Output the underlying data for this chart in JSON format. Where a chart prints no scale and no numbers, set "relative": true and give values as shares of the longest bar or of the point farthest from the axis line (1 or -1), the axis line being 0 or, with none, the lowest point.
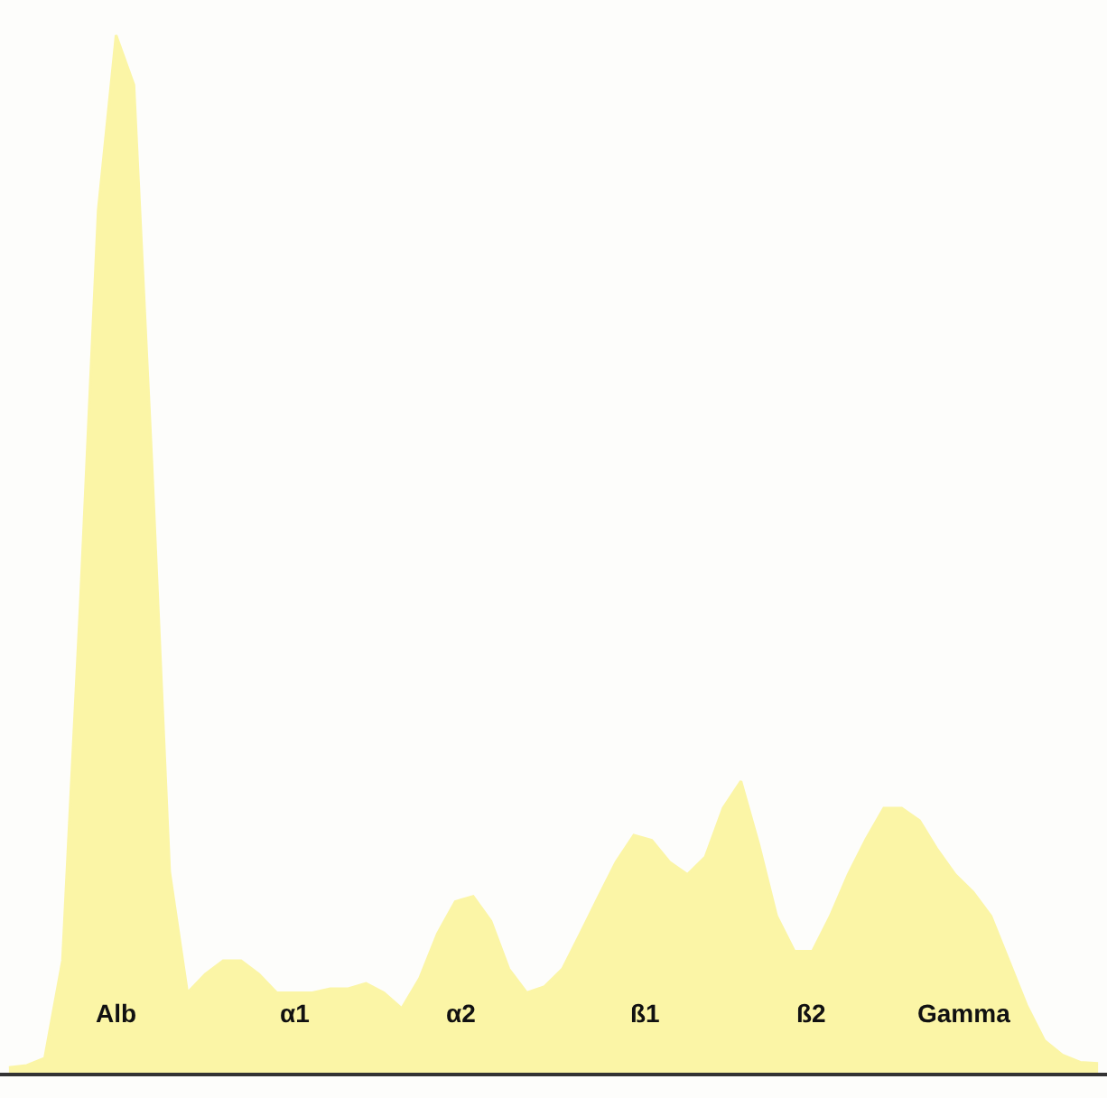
{
  "chart_data": {
    "type": "area",
    "relative": true,
    "categories": [
      null,
      null,
      null,
      null,
      null,
      null,
      null,
      null,
      null,
      null,
      null,
      null,
      null,
      null,
      null,
      null,
      null,
      null,
      null,
      null,
      null,
      null,
      null,
      null,
      null,
      null,
      null,
      null,
      null,
      null,
      null,
      null,
      null,
      null,
      null,
      null,
      null,
      null,
      null,
      null,
      null,
      null,
      null,
      null,
      null,
      null,
      null,
      null,
      null,
      null,
      null,
      null,
      null,
      null,
      null,
      null,
      null,
      null,
      null,
      null,
      null,
      null
    ],
    "series": [
      {
        "color": "#fbf5a6",
        "values": [
          0.005,
          0.007,
          0.014,
          0.108,
          0.453,
          0.831,
          1.0,
          0.952,
          0.59,
          0.194,
          0.077,
          0.095,
          0.108,
          0.108,
          0.095,
          0.077,
          0.077,
          0.077,
          0.081,
          0.081,
          0.086,
          0.077,
          0.062,
          0.091,
          0.134,
          0.165,
          0.17,
          0.146,
          0.1,
          0.077,
          0.083,
          0.1,
          0.134,
          0.169,
          0.203,
          0.229,
          0.224,
          0.203,
          0.191,
          0.208,
          0.255,
          0.281,
          0.22,
          0.151,
          0.117,
          0.117,
          0.151,
          0.191,
          0.225,
          0.255,
          0.255,
          0.243,
          0.215,
          0.191,
          0.174,
          0.151,
          0.108,
          0.065,
          0.031,
          0.017,
          0.01,
          0.009
        ]
      }
    ],
    "annotations": [
      "Alb",
      "α1",
      "α2",
      "ß1",
      "ß2",
      "Gamma"
    ]
  }
}
